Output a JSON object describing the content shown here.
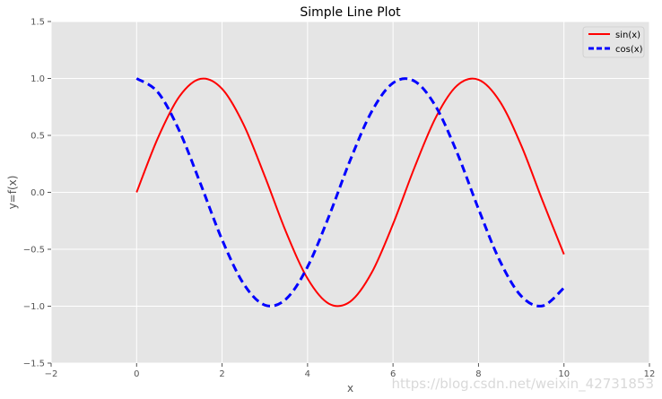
{
  "chart_data": {
    "type": "line",
    "title": "Simple Line Plot",
    "xlabel": "x",
    "ylabel": "y=f(x)",
    "xlim": [
      -2,
      12
    ],
    "ylim": [
      -1.5,
      1.5
    ],
    "xticks": [
      -2,
      0,
      2,
      4,
      6,
      8,
      10,
      12
    ],
    "yticks": [
      -1.5,
      -1.0,
      -0.5,
      0.0,
      0.5,
      1.0,
      1.5
    ],
    "xtick_labels": [
      "−2",
      "0",
      "2",
      "4",
      "6",
      "8",
      "10",
      "12"
    ],
    "ytick_labels": [
      "−1.5",
      "−1.0",
      "−0.5",
      "0.0",
      "0.5",
      "1.0",
      "1.5"
    ],
    "grid": true,
    "legend_position": "top-right",
    "background_color": "#e5e5e5",
    "grid_color": "#ffffff",
    "series": [
      {
        "name": "sin(x)",
        "color": "#ff0000",
        "style": "solid",
        "x": [
          0.0,
          0.5,
          1.0,
          1.5,
          2.0,
          2.5,
          3.0,
          3.5,
          4.0,
          4.5,
          5.0,
          5.5,
          6.0,
          6.5,
          7.0,
          7.5,
          8.0,
          8.5,
          9.0,
          9.5,
          10.0
        ],
        "values": [
          0.0,
          0.479,
          0.841,
          0.997,
          0.909,
          0.598,
          0.141,
          -0.351,
          -0.757,
          -0.978,
          -0.959,
          -0.706,
          -0.279,
          0.215,
          0.657,
          0.938,
          0.989,
          0.798,
          0.412,
          -0.075,
          -0.544
        ]
      },
      {
        "name": "cos(x)",
        "color": "#0000ff",
        "style": "dashed",
        "x": [
          0.0,
          0.5,
          1.0,
          1.5,
          2.0,
          2.5,
          3.0,
          3.5,
          4.0,
          4.5,
          5.0,
          5.5,
          6.0,
          6.5,
          7.0,
          7.5,
          8.0,
          8.5,
          9.0,
          9.5,
          10.0
        ],
        "values": [
          1.0,
          0.878,
          0.54,
          0.071,
          -0.416,
          -0.801,
          -0.99,
          -0.936,
          -0.654,
          -0.211,
          0.284,
          0.709,
          0.96,
          0.977,
          0.754,
          0.347,
          -0.146,
          -0.602,
          -0.911,
          -0.997,
          -0.839
        ]
      }
    ]
  },
  "watermark": "https://blog.csdn.net/weixin_42731853"
}
